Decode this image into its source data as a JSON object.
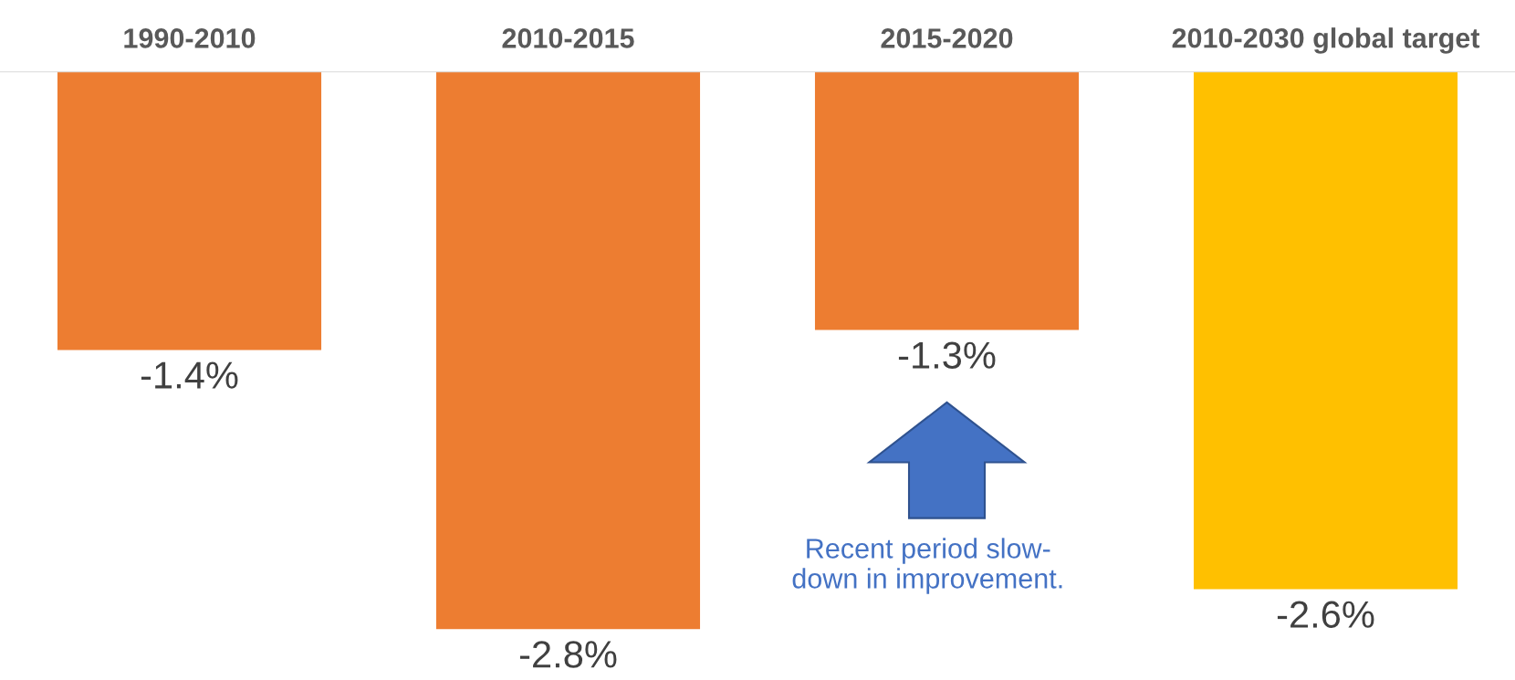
{
  "chart_data": {
    "type": "bar",
    "categories": [
      "1990-2010",
      "2010-2015",
      "2015-2020",
      "2010-2030 global target"
    ],
    "values": [
      -1.4,
      -2.8,
      -1.3,
      -2.6
    ],
    "colors": [
      "#ed7d31",
      "#ed7d31",
      "#ed7d31",
      "#ffc000"
    ],
    "value_labels": [
      "-1.4%",
      "-2.8%",
      "-1.3%",
      "-2.6%"
    ],
    "tick_labels": "x",
    "grid": false,
    "annotations": [
      "Recent period slow-\ndown in improvement."
    ]
  }
}
